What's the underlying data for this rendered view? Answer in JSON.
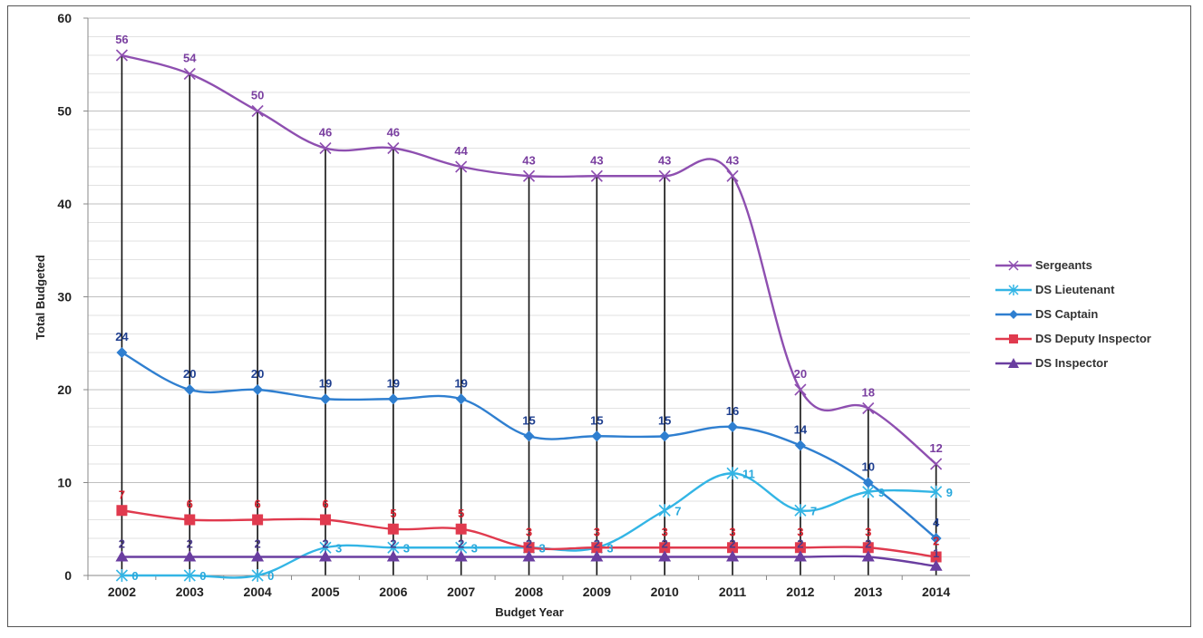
{
  "chart_data": {
    "type": "line",
    "title": "",
    "xlabel": "Budget Year",
    "ylabel": "Total Budgeted",
    "ylim": [
      0,
      60
    ],
    "yticks": [
      0,
      10,
      20,
      30,
      40,
      50,
      60
    ],
    "categories": [
      "2002",
      "2003",
      "2004",
      "2005",
      "2006",
      "2007",
      "2008",
      "2009",
      "2010",
      "2011",
      "2012",
      "2013",
      "2014"
    ],
    "grid": true,
    "legend_position": "right",
    "series": [
      {
        "name": "Sergeants",
        "color": "#8e4fb0",
        "marker": "x",
        "values": [
          56,
          54,
          50,
          46,
          46,
          44,
          43,
          43,
          43,
          43,
          20,
          18,
          12
        ],
        "labels": [
          "56",
          "54",
          "50",
          "46",
          "46",
          "44",
          "43",
          "43",
          "43",
          "43",
          "20",
          "18",
          "12"
        ]
      },
      {
        "name": "DS Lieutenant",
        "color": "#33b5e5",
        "marker": "star",
        "values": [
          0,
          0,
          0,
          3,
          3,
          3,
          3,
          3,
          7,
          11,
          7,
          9,
          9
        ],
        "labels": [
          "0",
          "0",
          "0",
          "3",
          "3",
          "3",
          "3",
          "3",
          "7",
          "11",
          "7",
          "9",
          "9"
        ]
      },
      {
        "name": "DS Captain",
        "color": "#2f7fd0",
        "marker": "diamond",
        "values": [
          24,
          20,
          20,
          19,
          19,
          19,
          15,
          15,
          15,
          16,
          14,
          10,
          4
        ],
        "labels": [
          "24",
          "20",
          "20",
          "19",
          "19",
          "19",
          "15",
          "15",
          "15",
          "16",
          "14",
          "10",
          "4"
        ]
      },
      {
        "name": "DS Deputy Inspector",
        "color": "#e03a4e",
        "marker": "square",
        "values": [
          7,
          6,
          6,
          6,
          5,
          5,
          3,
          3,
          3,
          3,
          3,
          3,
          2
        ],
        "labels": [
          "7",
          "6",
          "6",
          "6",
          "5",
          "5",
          "3",
          "3",
          "3",
          "3",
          "3",
          "3",
          "2"
        ]
      },
      {
        "name": "DS Inspector",
        "color": "#6a3ea0",
        "marker": "triangle",
        "values": [
          2,
          2,
          2,
          2,
          2,
          2,
          2,
          2,
          2,
          2,
          2,
          2,
          1
        ],
        "labels": [
          "2",
          "2",
          "2",
          "2",
          "2",
          "2",
          "2",
          "2",
          "2",
          "2",
          "2",
          "2",
          "1"
        ]
      }
    ]
  }
}
